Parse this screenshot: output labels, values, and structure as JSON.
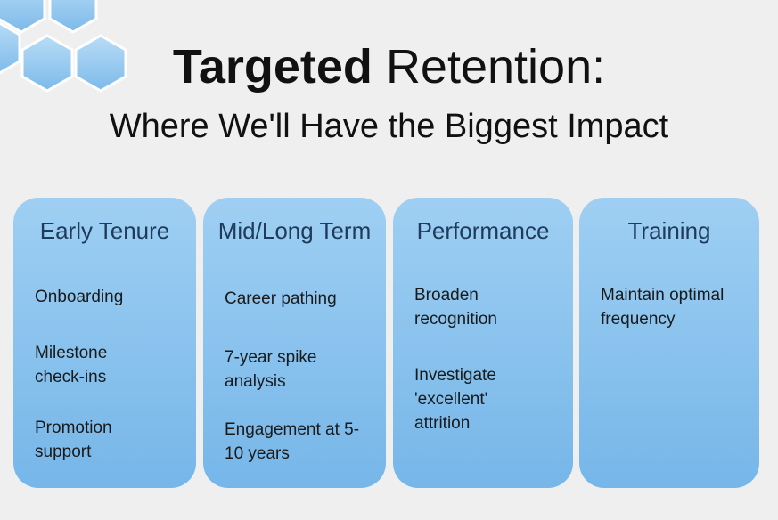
{
  "header": {
    "title_bold": "Targeted",
    "title_rest": "Retention:",
    "subtitle": "Where We'll Have the Biggest Impact"
  },
  "colors": {
    "background": "#efefef",
    "card_top": "#9fcff3",
    "card_bottom": "#76b6e9",
    "card_title": "#1f3b5c",
    "hexagon": "#8fc3ef"
  },
  "icons": {
    "decoration": "hexagon-cluster-icon"
  },
  "cards": [
    {
      "title": "Early Tenure",
      "items": [
        "Onboarding",
        "Milestone check-ins",
        "Promotion support"
      ]
    },
    {
      "title": "Mid/Long Term",
      "items": [
        "Career pathing",
        "7-year spike analysis",
        "Engagement at 5-10 years"
      ]
    },
    {
      "title": "Performance",
      "items": [
        "Broaden recognition",
        "Investigate 'excellent' attrition"
      ]
    },
    {
      "title": "Training",
      "items": [
        "Maintain optimal frequency"
      ]
    }
  ]
}
